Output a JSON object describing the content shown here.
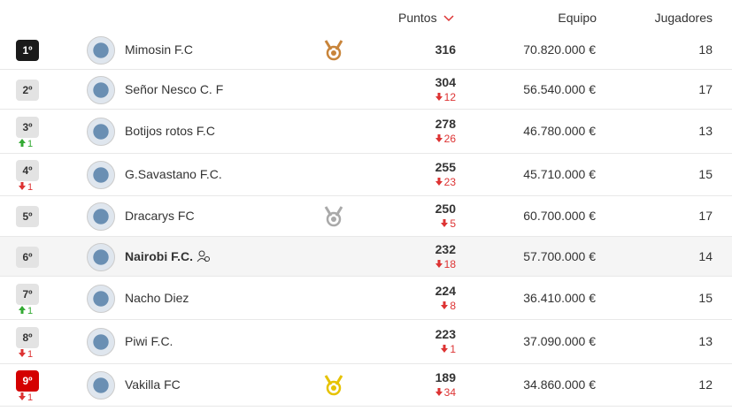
{
  "header": {
    "points": "Puntos",
    "team_value": "Equipo",
    "players": "Jugadores"
  },
  "rows": [
    {
      "position": "1º",
      "badge": "#1a1a1a",
      "name": "Mimosin F.C",
      "medal": "#c8843a",
      "points": "316",
      "team_value": "70.820.000 €",
      "players": "18"
    },
    {
      "position": "2º",
      "name": "Señor Nesco C. F",
      "points": "304",
      "points_change": "12",
      "team_value": "56.540.000 €",
      "players": "17"
    },
    {
      "position": "3º",
      "position_change": "1",
      "position_trend": "up",
      "name": "Botijos rotos F.C",
      "points": "278",
      "points_change": "26",
      "team_value": "46.780.000 €",
      "players": "13"
    },
    {
      "position": "4º",
      "position_change": "1",
      "position_trend": "down",
      "name": "G.Savastano F.C.",
      "points": "255",
      "points_change": "23",
      "team_value": "45.710.000 €",
      "players": "15"
    },
    {
      "position": "5º",
      "name": "Dracarys FC",
      "medal": "#a9a9a9",
      "points": "250",
      "points_change": "5",
      "team_value": "60.700.000 €",
      "players": "17"
    },
    {
      "position": "6º",
      "name": "Nairobi F.C.",
      "highlight": true,
      "points": "232",
      "points_change": "18",
      "team_value": "57.700.000 €",
      "players": "14"
    },
    {
      "position": "7º",
      "position_change": "1",
      "position_trend": "up",
      "name": "Nacho Diez",
      "points": "224",
      "points_change": "8",
      "team_value": "36.410.000 €",
      "players": "15"
    },
    {
      "position": "8º",
      "position_change": "1",
      "position_trend": "down",
      "name": "Piwi F.C.",
      "points": "223",
      "points_change": "1",
      "team_value": "37.090.000 €",
      "players": "13"
    },
    {
      "position": "9º",
      "badge": "#d40000",
      "position_change": "1",
      "position_trend": "down",
      "name": "Vakilla FC",
      "medal": "#e6c200",
      "points": "189",
      "points_change": "34",
      "team_value": "34.860.000 €",
      "players": "12"
    }
  ]
}
